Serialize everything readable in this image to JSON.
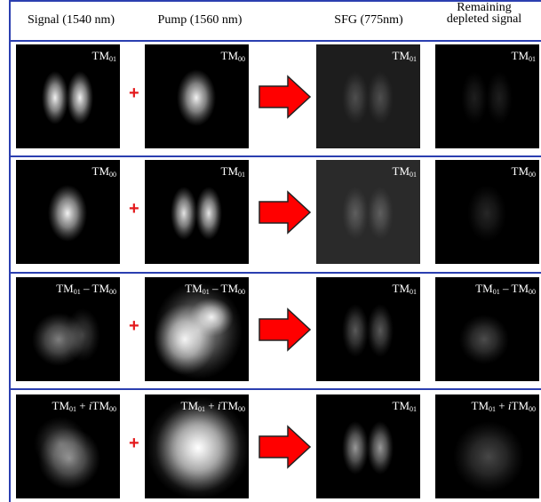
{
  "header": {
    "columns": [
      "Signal (1540 nm)",
      "Pump (1560 nm)",
      "SFG (775nm)",
      "Remaining depleted signal"
    ]
  },
  "rows": [
    {
      "signal": [
        {
          "t": "TM"
        },
        {
          "sub": "01"
        }
      ],
      "pump": [
        {
          "t": "TM"
        },
        {
          "sub": "00"
        }
      ],
      "sfg": [
        {
          "t": "TM"
        },
        {
          "sub": "01"
        }
      ],
      "remaining": [
        {
          "t": "TM"
        },
        {
          "sub": "01"
        }
      ]
    },
    {
      "signal": [
        {
          "t": "TM"
        },
        {
          "sub": "00"
        }
      ],
      "pump": [
        {
          "t": "TM"
        },
        {
          "sub": "01"
        }
      ],
      "sfg": [
        {
          "t": "TM"
        },
        {
          "sub": "01"
        }
      ],
      "remaining": [
        {
          "t": "TM"
        },
        {
          "sub": "00"
        }
      ]
    },
    {
      "signal": [
        {
          "t": "TM"
        },
        {
          "sub": "01"
        },
        {
          "t": " – TM"
        },
        {
          "sub": "00"
        }
      ],
      "pump": [
        {
          "t": "TM"
        },
        {
          "sub": "01"
        },
        {
          "t": " – TM"
        },
        {
          "sub": "00"
        }
      ],
      "sfg": [
        {
          "t": "TM"
        },
        {
          "sub": "01"
        }
      ],
      "remaining": [
        {
          "t": "TM"
        },
        {
          "sub": "01"
        },
        {
          "t": " – TM"
        },
        {
          "sub": "00"
        }
      ]
    },
    {
      "signal": [
        {
          "t": "TM"
        },
        {
          "sub": "01"
        },
        {
          "t": " + "
        },
        {
          "i": "i"
        },
        {
          "t": "TM"
        },
        {
          "sub": "00"
        }
      ],
      "pump": [
        {
          "t": "TM"
        },
        {
          "sub": "01"
        },
        {
          "t": " + "
        },
        {
          "i": "i"
        },
        {
          "t": "TM"
        },
        {
          "sub": "00"
        }
      ],
      "sfg": [
        {
          "t": "TM"
        },
        {
          "sub": "01"
        }
      ],
      "remaining": [
        {
          "t": "TM"
        },
        {
          "sub": "01"
        },
        {
          "t": " + "
        },
        {
          "i": "i"
        },
        {
          "t": "TM"
        },
        {
          "sub": "00"
        }
      ]
    }
  ],
  "plus": "+"
}
